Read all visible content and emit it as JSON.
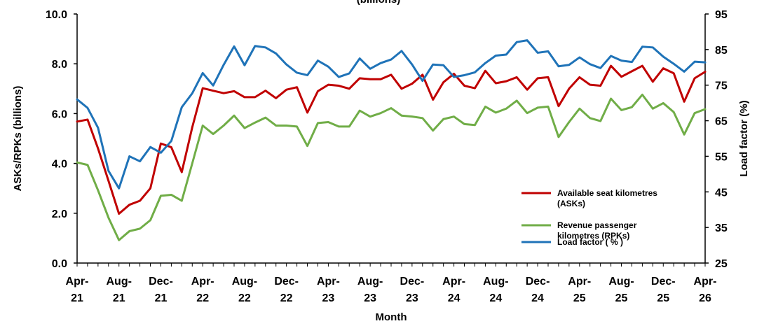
{
  "chart_data": {
    "type": "line",
    "title": "(billions)",
    "xlabel": "Month",
    "ylabel_left": "ASKs/RPKs (billions)",
    "ylabel_right": "Load factor (%)",
    "ylim_left": [
      0,
      10
    ],
    "ylim_right": [
      25,
      95
    ],
    "yticks_left": [
      "0.0",
      "2.0",
      "4.0",
      "6.0",
      "8.0",
      "10.0"
    ],
    "yticks_right": [
      "25",
      "35",
      "45",
      "55",
      "65",
      "75",
      "85",
      "95"
    ],
    "x_tick_labels": [
      [
        "Apr-",
        "21"
      ],
      [
        "Aug-",
        "21"
      ],
      [
        "Dec-",
        "21"
      ],
      [
        "Apr-",
        "22"
      ],
      [
        "Aug-",
        "22"
      ],
      [
        "Dec-",
        "22"
      ],
      [
        "Apr-",
        "23"
      ],
      [
        "Aug-",
        "23"
      ],
      [
        "Dec-",
        "23"
      ],
      [
        "Apr-",
        "24"
      ],
      [
        "Aug-",
        "24"
      ],
      [
        "Dec-",
        "24"
      ],
      [
        "Apr-",
        "25"
      ],
      [
        "Aug-",
        "25"
      ],
      [
        "Dec-",
        "25"
      ],
      [
        "Apr-",
        "26"
      ]
    ],
    "x_months": [
      "Apr-21",
      "May-21",
      "Jun-21",
      "Jul-21",
      "Aug-21",
      "Sep-21",
      "Oct-21",
      "Nov-21",
      "Dec-21",
      "Jan-22",
      "Feb-22",
      "Mar-22",
      "Apr-22",
      "May-22",
      "Jun-22",
      "Jul-22",
      "Aug-22",
      "Sep-22",
      "Oct-22",
      "Nov-22",
      "Dec-22",
      "Jan-23",
      "Feb-23",
      "Mar-23",
      "Apr-23",
      "May-23",
      "Jun-23",
      "Jul-23",
      "Aug-23",
      "Sep-23",
      "Oct-23",
      "Nov-23",
      "Dec-23",
      "Jan-24",
      "Feb-24",
      "Mar-24",
      "Apr-24",
      "May-24",
      "Jun-24",
      "Jul-24",
      "Aug-24",
      "Sep-24",
      "Oct-24",
      "Nov-24",
      "Dec-24",
      "Jan-25",
      "Feb-25",
      "Mar-25",
      "Apr-25",
      "May-25",
      "Jun-25",
      "Jul-25",
      "Aug-25",
      "Sep-25",
      "Oct-25",
      "Nov-25",
      "Dec-25",
      "Jan-26",
      "Feb-26",
      "Mar-26",
      "Apr-26"
    ],
    "grid": false,
    "legend_position": "lower-right",
    "series": [
      {
        "name": "Available seat kilometres (ASKs)",
        "legend_lines": [
          "Available seat kilometres",
          "(ASKs)"
        ],
        "axis": "left",
        "color": "#C00000",
        "values": [
          5.68,
          5.76,
          4.6,
          3.3,
          1.98,
          2.34,
          2.5,
          3.0,
          4.8,
          4.65,
          3.65,
          5.45,
          7.02,
          6.92,
          6.82,
          6.9,
          6.66,
          6.66,
          6.92,
          6.62,
          6.96,
          7.06,
          6.04,
          6.9,
          7.16,
          7.12,
          7.0,
          7.42,
          7.38,
          7.38,
          7.56,
          7.0,
          7.2,
          7.56,
          6.56,
          7.26,
          7.6,
          7.12,
          7.02,
          7.72,
          7.22,
          7.3,
          7.46,
          6.96,
          7.42,
          7.46,
          6.3,
          7.0,
          7.46,
          7.16,
          7.12,
          7.92,
          7.48,
          7.7,
          7.92,
          7.28,
          7.82,
          7.62,
          6.48,
          7.42,
          7.68
        ]
      },
      {
        "name": "Revenue passenger kilometres (RPKs)",
        "legend_lines": [
          "Revenue passenger",
          "kilometres (RPKs)"
        ],
        "axis": "left",
        "color": "#70AD47",
        "values": [
          4.04,
          3.94,
          2.92,
          1.82,
          0.92,
          1.28,
          1.38,
          1.72,
          2.7,
          2.74,
          2.5,
          4.0,
          5.52,
          5.18,
          5.52,
          5.92,
          5.42,
          5.64,
          5.84,
          5.52,
          5.52,
          5.48,
          4.7,
          5.62,
          5.66,
          5.48,
          5.48,
          6.12,
          5.88,
          6.02,
          6.22,
          5.92,
          5.88,
          5.82,
          5.32,
          5.78,
          5.88,
          5.58,
          5.54,
          6.28,
          6.04,
          6.2,
          6.52,
          6.02,
          6.24,
          6.28,
          5.06,
          5.66,
          6.2,
          5.82,
          5.7,
          6.6,
          6.14,
          6.26,
          6.76,
          6.2,
          6.42,
          6.06,
          5.16,
          6.02,
          6.18
        ]
      },
      {
        "name": "Load factor (%)",
        "legend_lines": [
          "Load factor ( % )"
        ],
        "axis": "right",
        "color": "#1F73B8",
        "values": [
          71.0,
          68.6,
          63.0,
          50.9,
          46.0,
          55.0,
          53.6,
          57.6,
          56.0,
          59.3,
          68.8,
          72.7,
          78.4,
          74.9,
          80.7,
          85.9,
          80.6,
          86.0,
          85.6,
          83.9,
          80.8,
          78.5,
          77.8,
          81.9,
          80.2,
          77.3,
          78.3,
          82.5,
          79.6,
          81.2,
          82.2,
          84.6,
          80.8,
          76.2,
          80.8,
          80.6,
          77.3,
          77.8,
          78.6,
          81.2,
          83.3,
          83.6,
          87.1,
          87.6,
          84.1,
          84.5,
          80.3,
          80.7,
          82.8,
          80.9,
          79.8,
          83.2,
          81.9,
          81.5,
          85.8,
          85.6,
          83.0,
          81.0,
          78.8,
          81.6,
          81.4
        ]
      }
    ]
  }
}
